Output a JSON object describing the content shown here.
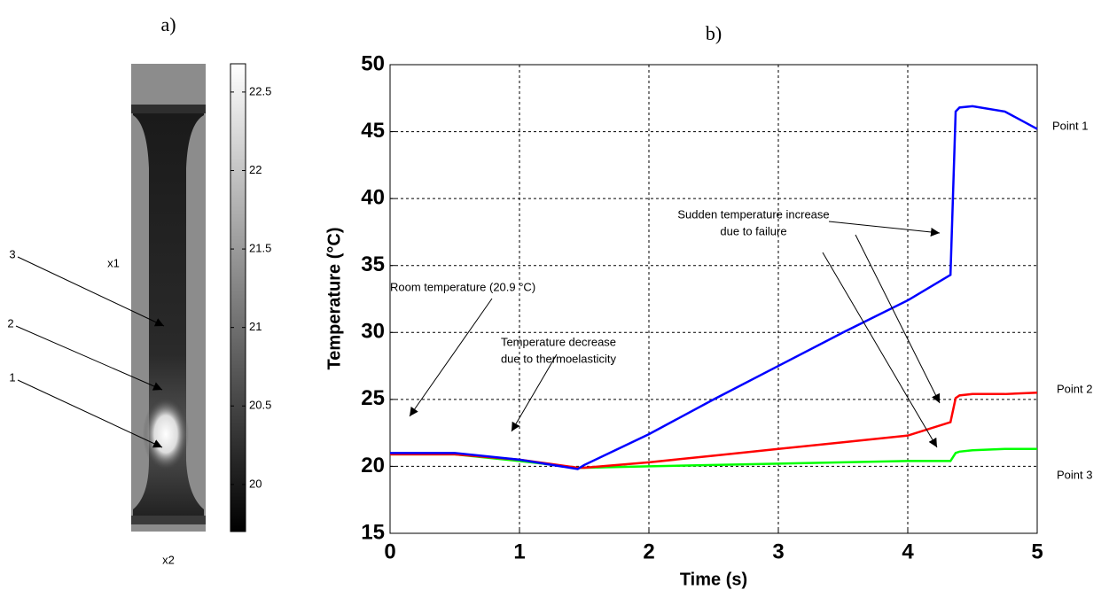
{
  "chart_data": [
    {
      "type": "image",
      "title": "a)",
      "point_labels": [
        "1",
        "2",
        "3"
      ],
      "axis_labels": [
        "x1",
        "x2"
      ],
      "clim": [
        19.7,
        22.68
      ],
      "cticks": [
        20,
        20.5,
        21,
        21.5,
        22,
        22.5
      ]
    },
    {
      "type": "line",
      "title": "b)",
      "xlabel": "Time (s)",
      "ylabel": "Temperature (°C)",
      "x": [
        0,
        0.5,
        1,
        1.45,
        1.5,
        2,
        2.5,
        3,
        3.5,
        4,
        4.33,
        4.37,
        4.4,
        4.5,
        4.75,
        5
      ],
      "series": [
        {
          "name": "Point 1",
          "color": "#0000ff",
          "values": [
            21,
            21,
            20.5,
            19.8,
            20.1,
            22.4,
            25,
            27.5,
            30,
            32.4,
            34.3,
            46.5,
            46.8,
            46.9,
            46.5,
            45.2
          ]
        },
        {
          "name": "Point 2",
          "color": "#ff0000",
          "values": [
            20.9,
            20.9,
            20.5,
            19.9,
            19.9,
            20.3,
            20.8,
            21.3,
            21.8,
            22.3,
            23.3,
            25.1,
            25.3,
            25.4,
            25.4,
            25.5
          ]
        },
        {
          "name": "Point 3",
          "color": "#00ff00",
          "values": [
            20.9,
            20.9,
            20.4,
            19.9,
            19.9,
            20,
            20.1,
            20.2,
            20.3,
            20.4,
            20.4,
            21,
            21.1,
            21.2,
            21.3,
            21.3
          ]
        }
      ],
      "xlim": [
        0,
        5
      ],
      "xticks": [
        0,
        1,
        2,
        3,
        4,
        5
      ],
      "ylim": [
        15,
        50
      ],
      "yticks": [
        15,
        20,
        25,
        30,
        35,
        40,
        45,
        50
      ],
      "grid": true,
      "annotations": [
        [
          "Room temperature (20.9 °C)"
        ],
        [
          "Temperature decrease",
          "due to thermoelasticity"
        ],
        [
          "Sudden temperature increase",
          "due to failure"
        ]
      ]
    }
  ]
}
